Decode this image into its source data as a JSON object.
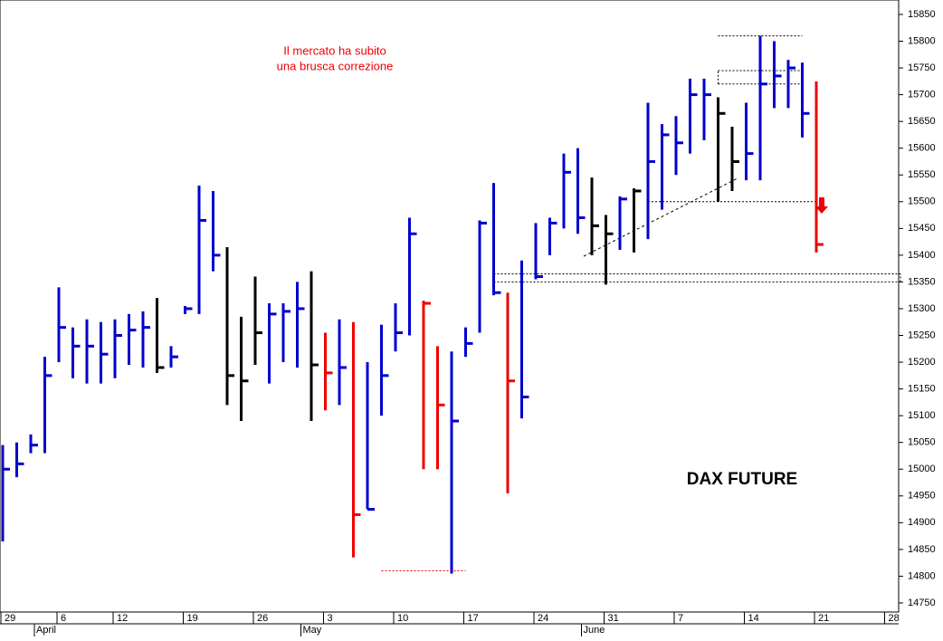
{
  "chart_data": {
    "type": "hlc",
    "annotations": [
      "Il mercato ha subito",
      "una brusca correzione"
    ],
    "label": "DAX FUTURE",
    "categories": [
      "29",
      null,
      null,
      null,
      "6",
      null,
      null,
      null,
      "12",
      null,
      null,
      null,
      null,
      "19",
      null,
      null,
      null,
      null,
      "26",
      null,
      null,
      null,
      null,
      "3",
      null,
      null,
      null,
      null,
      "10",
      null,
      null,
      null,
      null,
      "17",
      null,
      null,
      null,
      null,
      "24",
      null,
      null,
      null,
      null,
      "31",
      null,
      null,
      null,
      null,
      "7",
      null,
      null,
      null,
      null,
      "14",
      null,
      null,
      null,
      null,
      "21",
      null,
      null,
      null,
      null,
      "28",
      null
    ],
    "months": [
      null,
      null,
      null,
      null,
      "April",
      null,
      null,
      null,
      null,
      null,
      null,
      null,
      null,
      null,
      null,
      null,
      null,
      null,
      null,
      null,
      null,
      null,
      null,
      "May",
      null,
      null,
      null,
      null,
      null,
      null,
      null,
      null,
      null,
      null,
      null,
      null,
      null,
      null,
      null,
      null,
      null,
      null,
      null,
      "June",
      null,
      null,
      null,
      null,
      null,
      null,
      null,
      null,
      null,
      null,
      null,
      null,
      null,
      null,
      null,
      null,
      null,
      null,
      null,
      null,
      null
    ],
    "series": [
      {
        "name": "high",
        "values": [
          15045,
          15050,
          15065,
          15210,
          15340,
          15265,
          15280,
          15275,
          15280,
          15290,
          15295,
          15320,
          15230,
          15305,
          15530,
          15520,
          15415,
          15285,
          15360,
          15310,
          15310,
          15350,
          15370,
          15255,
          15280,
          15275,
          15200,
          15270,
          15310,
          15470,
          15315,
          15230,
          15220,
          15265,
          15465,
          15535,
          15330,
          15390,
          15460,
          15470,
          15590,
          15600,
          15545,
          15475,
          15510,
          15525,
          15685,
          15645,
          15660,
          15730,
          15730,
          15695,
          15640,
          15685,
          15810,
          15800,
          15765,
          15760,
          15725,
          null,
          null,
          null,
          null,
          null,
          null
        ]
      },
      {
        "name": "low",
        "values": [
          14865,
          14985,
          15030,
          15030,
          15200,
          15170,
          15160,
          15160,
          15170,
          15195,
          15190,
          15180,
          15190,
          15290,
          15290,
          15370,
          15120,
          15090,
          15195,
          15160,
          15200,
          15190,
          15090,
          15110,
          15120,
          14835,
          14925,
          15100,
          15220,
          15250,
          15000,
          15000,
          14805,
          15210,
          15255,
          15325,
          14955,
          15095,
          15355,
          15400,
          15450,
          15440,
          15400,
          15345,
          15410,
          15405,
          15430,
          15485,
          15550,
          15590,
          15615,
          15500,
          15520,
          15540,
          15540,
          15675,
          15675,
          15620,
          15405,
          null,
          null,
          null,
          null,
          null,
          null
        ]
      },
      {
        "name": "close",
        "values": [
          15000,
          15010,
          15045,
          15175,
          15265,
          15230,
          15230,
          15215,
          15250,
          15260,
          15265,
          15190,
          15210,
          15300,
          15465,
          15400,
          15175,
          15165,
          15255,
          15290,
          15295,
          15300,
          15195,
          15180,
          15190,
          14915,
          14925,
          15175,
          15255,
          15440,
          15310,
          15120,
          15090,
          15235,
          15460,
          15330,
          15165,
          15135,
          15360,
          15460,
          15555,
          15470,
          15455,
          15440,
          15505,
          15520,
          15575,
          15625,
          15610,
          15700,
          15700,
          15665,
          15575,
          15590,
          15720,
          15735,
          15750,
          15665,
          15420,
          null,
          null,
          null,
          null,
          null,
          null
        ]
      }
    ],
    "bar_colors": [
      "#0000cc",
      "#0000cc",
      "#0000cc",
      "#0000cc",
      "#0000cc",
      "#0000cc",
      "#0000cc",
      "#0000cc",
      "#0000cc",
      "#0000cc",
      "#0000cc",
      "#000000",
      "#0000cc",
      "#0000cc",
      "#0000cc",
      "#0000cc",
      "#000000",
      "#000000",
      "#000000",
      "#0000cc",
      "#0000cc",
      "#0000cc",
      "#000000",
      "#ee0000",
      "#0000cc",
      "#ee0000",
      "#0000cc",
      "#0000cc",
      "#0000cc",
      "#0000cc",
      "#ee0000",
      "#ee0000",
      "#0000cc",
      "#0000cc",
      "#0000cc",
      "#0000cc",
      "#ee0000",
      "#0000cc",
      "#0000cc",
      "#0000cc",
      "#0000cc",
      "#0000cc",
      "#000000",
      "#000000",
      "#0000cc",
      "#000000",
      "#0000cc",
      "#0000cc",
      "#0000cc",
      "#0000cc",
      "#0000cc",
      "#000000",
      "#000000",
      "#0000cc",
      "#0000cc",
      "#0000cc",
      "#0000cc",
      "#0000cc",
      "#ee0000",
      null,
      null,
      null,
      null,
      null,
      null
    ],
    "levels": [
      {
        "from": 51,
        "to": 57,
        "values": [
          15810
        ]
      },
      {
        "from": 51,
        "to": 57,
        "values": [
          15720,
          15745
        ]
      },
      {
        "from": 46,
        "to": 58,
        "values": [
          15500
        ]
      },
      {
        "from": 35,
        "to": 64,
        "values": [
          15350,
          15365
        ]
      },
      {
        "from": 27,
        "to": 33,
        "values": [
          14810
        ]
      }
    ],
    "ylim": [
      14733,
      15877
    ],
    "yticks": [
      14750,
      14800,
      14850,
      14900,
      14950,
      15000,
      15050,
      15100,
      15150,
      15200,
      15250,
      15300,
      15350,
      15400,
      15450,
      15500,
      15550,
      15600,
      15650,
      15700,
      15750,
      15800,
      15850
    ]
  }
}
